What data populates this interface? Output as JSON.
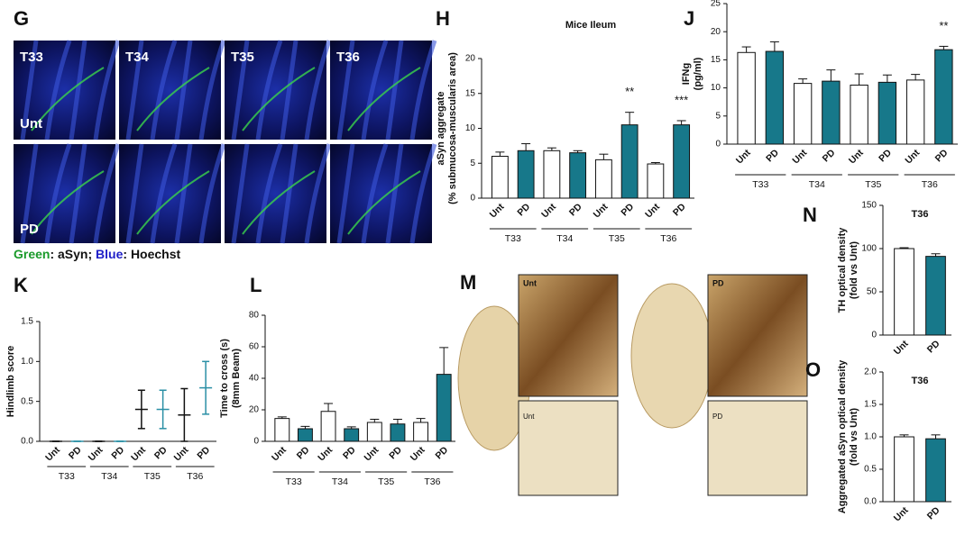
{
  "panels": [
    "G",
    "H",
    "J",
    "K",
    "L",
    "M",
    "N",
    "O"
  ],
  "microscopy": {
    "columns": [
      "T33",
      "T34",
      "T35",
      "T36"
    ],
    "rows": [
      "Unt",
      "PD"
    ],
    "caption": [
      "Green",
      ": aSyn; ",
      "Blue",
      ": Hoechst"
    ]
  },
  "histology": {
    "labels": [
      "Unt",
      "PD",
      "Unt",
      "PD"
    ]
  },
  "chart_data": [
    {
      "type": "bar",
      "title": "Mice Ileum",
      "ylabel": [
        "aSyn aggregate",
        "(% submucosa-muscularis area)"
      ],
      "categories": [
        "Unt",
        "PD",
        "Unt",
        "PD",
        "Unt",
        "PD",
        "Unt",
        "PD"
      ],
      "groups": [
        "T33",
        "T34",
        "T35",
        "T36"
      ],
      "values": [
        6,
        6.8,
        6.8,
        6.5,
        5.5,
        10.5,
        4.9,
        10.5
      ],
      "errors": [
        0.6,
        1,
        0.4,
        0.3,
        0.8,
        1.8,
        0.2,
        0.6
      ],
      "colors": [
        "#ffffff",
        "#17788a"
      ],
      "ylim": [
        0,
        20
      ],
      "yticks": [
        0,
        5,
        10,
        15,
        20
      ],
      "annotations": [
        {
          "text": "**",
          "category_index": 5
        },
        {
          "text": "***",
          "category_index": 7
        }
      ]
    },
    {
      "type": "bar",
      "ylabel": [
        "IFNg",
        "(pg/ml)"
      ],
      "categories": [
        "Unt",
        "PD",
        "Unt",
        "PD",
        "Unt",
        "PD",
        "Unt",
        "PD"
      ],
      "groups": [
        "T33",
        "T34",
        "T35",
        "T36"
      ],
      "values": [
        16.3,
        16.5,
        10.8,
        11.2,
        10.5,
        11,
        11.4,
        16.8
      ],
      "errors": [
        1,
        1.7,
        0.8,
        2,
        2,
        1.3,
        1,
        0.6
      ],
      "colors": [
        "#ffffff",
        "#17788a"
      ],
      "ylim": [
        0,
        25
      ],
      "yticks": [
        0,
        5,
        10,
        15,
        20,
        25
      ],
      "annotations": [
        {
          "text": "**",
          "category_index": 7
        }
      ]
    },
    {
      "type": "errorbar",
      "ylabel": [
        "Hindlimb score"
      ],
      "categories": [
        "Unt",
        "PD",
        "Unt",
        "PD",
        "Unt",
        "PD",
        "Unt",
        "PD"
      ],
      "groups": [
        "T33",
        "T34",
        "T35",
        "T36"
      ],
      "values": [
        0,
        0,
        0,
        0,
        0.4,
        0.4,
        0.33,
        0.67
      ],
      "errors": [
        0,
        0,
        0,
        0,
        0.24,
        0.24,
        0.33,
        0.33
      ],
      "colors": [
        "#111111",
        "#2a8fa5"
      ],
      "ylim": [
        0,
        1.5
      ],
      "yticks": [
        {
          "value": 0,
          "label": "0.0"
        },
        0.5,
        {
          "value": 1,
          "label": "1.0"
        },
        1.5
      ]
    },
    {
      "type": "bar",
      "ylabel": [
        "Time to cross (s)",
        "(8mm Beam)"
      ],
      "categories": [
        "Unt",
        "PD",
        "Unt",
        "PD",
        "Unt",
        "PD",
        "Unt",
        "PD"
      ],
      "groups": [
        "T33",
        "T34",
        "T35",
        "T36"
      ],
      "values": [
        14.5,
        8,
        19,
        8,
        12,
        11,
        12,
        42.5
      ],
      "errors": [
        1,
        1.5,
        5,
        1.2,
        2,
        3,
        2.5,
        17
      ],
      "colors": [
        "#ffffff",
        "#17788a"
      ],
      "ylim": [
        0,
        80
      ],
      "yticks": [
        0,
        20,
        40,
        60,
        80
      ]
    },
    {
      "type": "bar",
      "title": "T36",
      "ylabel": [
        "TH optical density",
        "(fold vs Unt)"
      ],
      "categories": [
        "Unt",
        "PD"
      ],
      "values": [
        100,
        91
      ],
      "errors": [
        1,
        3
      ],
      "colors": [
        "#ffffff",
        "#17788a"
      ],
      "ylim": [
        0,
        150
      ],
      "yticks": [
        0,
        50,
        100,
        150
      ]
    },
    {
      "type": "bar",
      "title": "T36",
      "ylabel": [
        "Aggregated aSyn optical density",
        "(fold vs Unt)"
      ],
      "categories": [
        "Unt",
        "PD"
      ],
      "values": [
        1,
        0.97
      ],
      "errors": [
        0.03,
        0.06
      ],
      "colors": [
        "#ffffff",
        "#17788a"
      ],
      "ylim": [
        0,
        2
      ],
      "yticks": [
        {
          "value": 0,
          "label": "0.0"
        },
        0.5,
        {
          "value": 1,
          "label": "1.0"
        },
        1.5,
        {
          "value": 2,
          "label": "2.0"
        }
      ]
    }
  ]
}
